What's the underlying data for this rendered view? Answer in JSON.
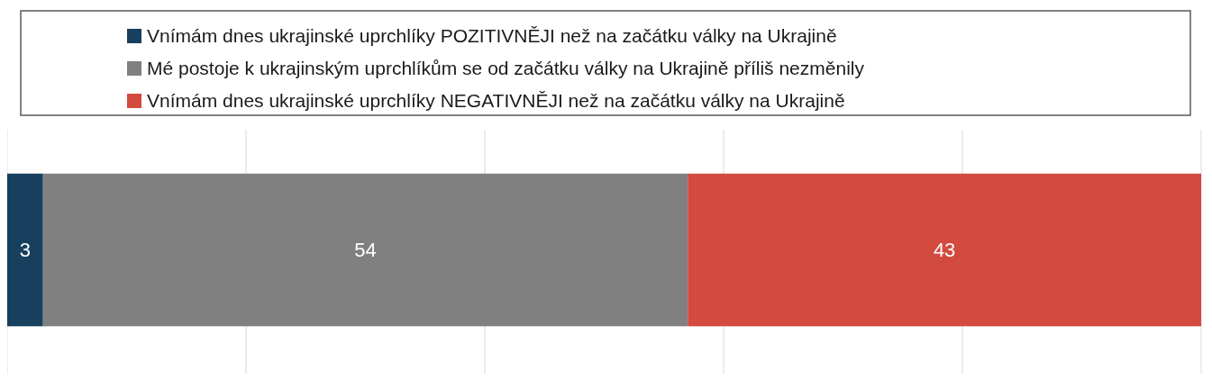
{
  "chart_data": {
    "type": "bar",
    "orientation": "horizontal",
    "stacked": true,
    "categories": [
      null
    ],
    "series": [
      {
        "name": "Vnímám dnes ukrajinské uprchlíky POZITIVNĚJI než na začátku války na Ukrajině",
        "color": "#17405f",
        "values": [
          3
        ]
      },
      {
        "name": "Mé postoje k ukrajinským uprchlíkům se od začátku války na Ukrajině příliš nezměnily",
        "color": "#808080",
        "values": [
          54
        ]
      },
      {
        "name": "Vnímám dnes ukrajinské uprchlíky NEGATIVNĚJI než na začátku války na Ukrajině",
        "color": "#d34a3f",
        "values": [
          43
        ]
      }
    ],
    "xlim": [
      0,
      100
    ],
    "xticks": [
      {
        "value": 0,
        "label": null
      },
      {
        "value": 20,
        "label": null
      },
      {
        "value": 40,
        "label": null
      },
      {
        "value": 60,
        "label": null
      },
      {
        "value": 80,
        "label": null
      },
      {
        "value": 100,
        "label": null
      }
    ],
    "grid": "x",
    "legend": "top",
    "data_labels": true
  }
}
